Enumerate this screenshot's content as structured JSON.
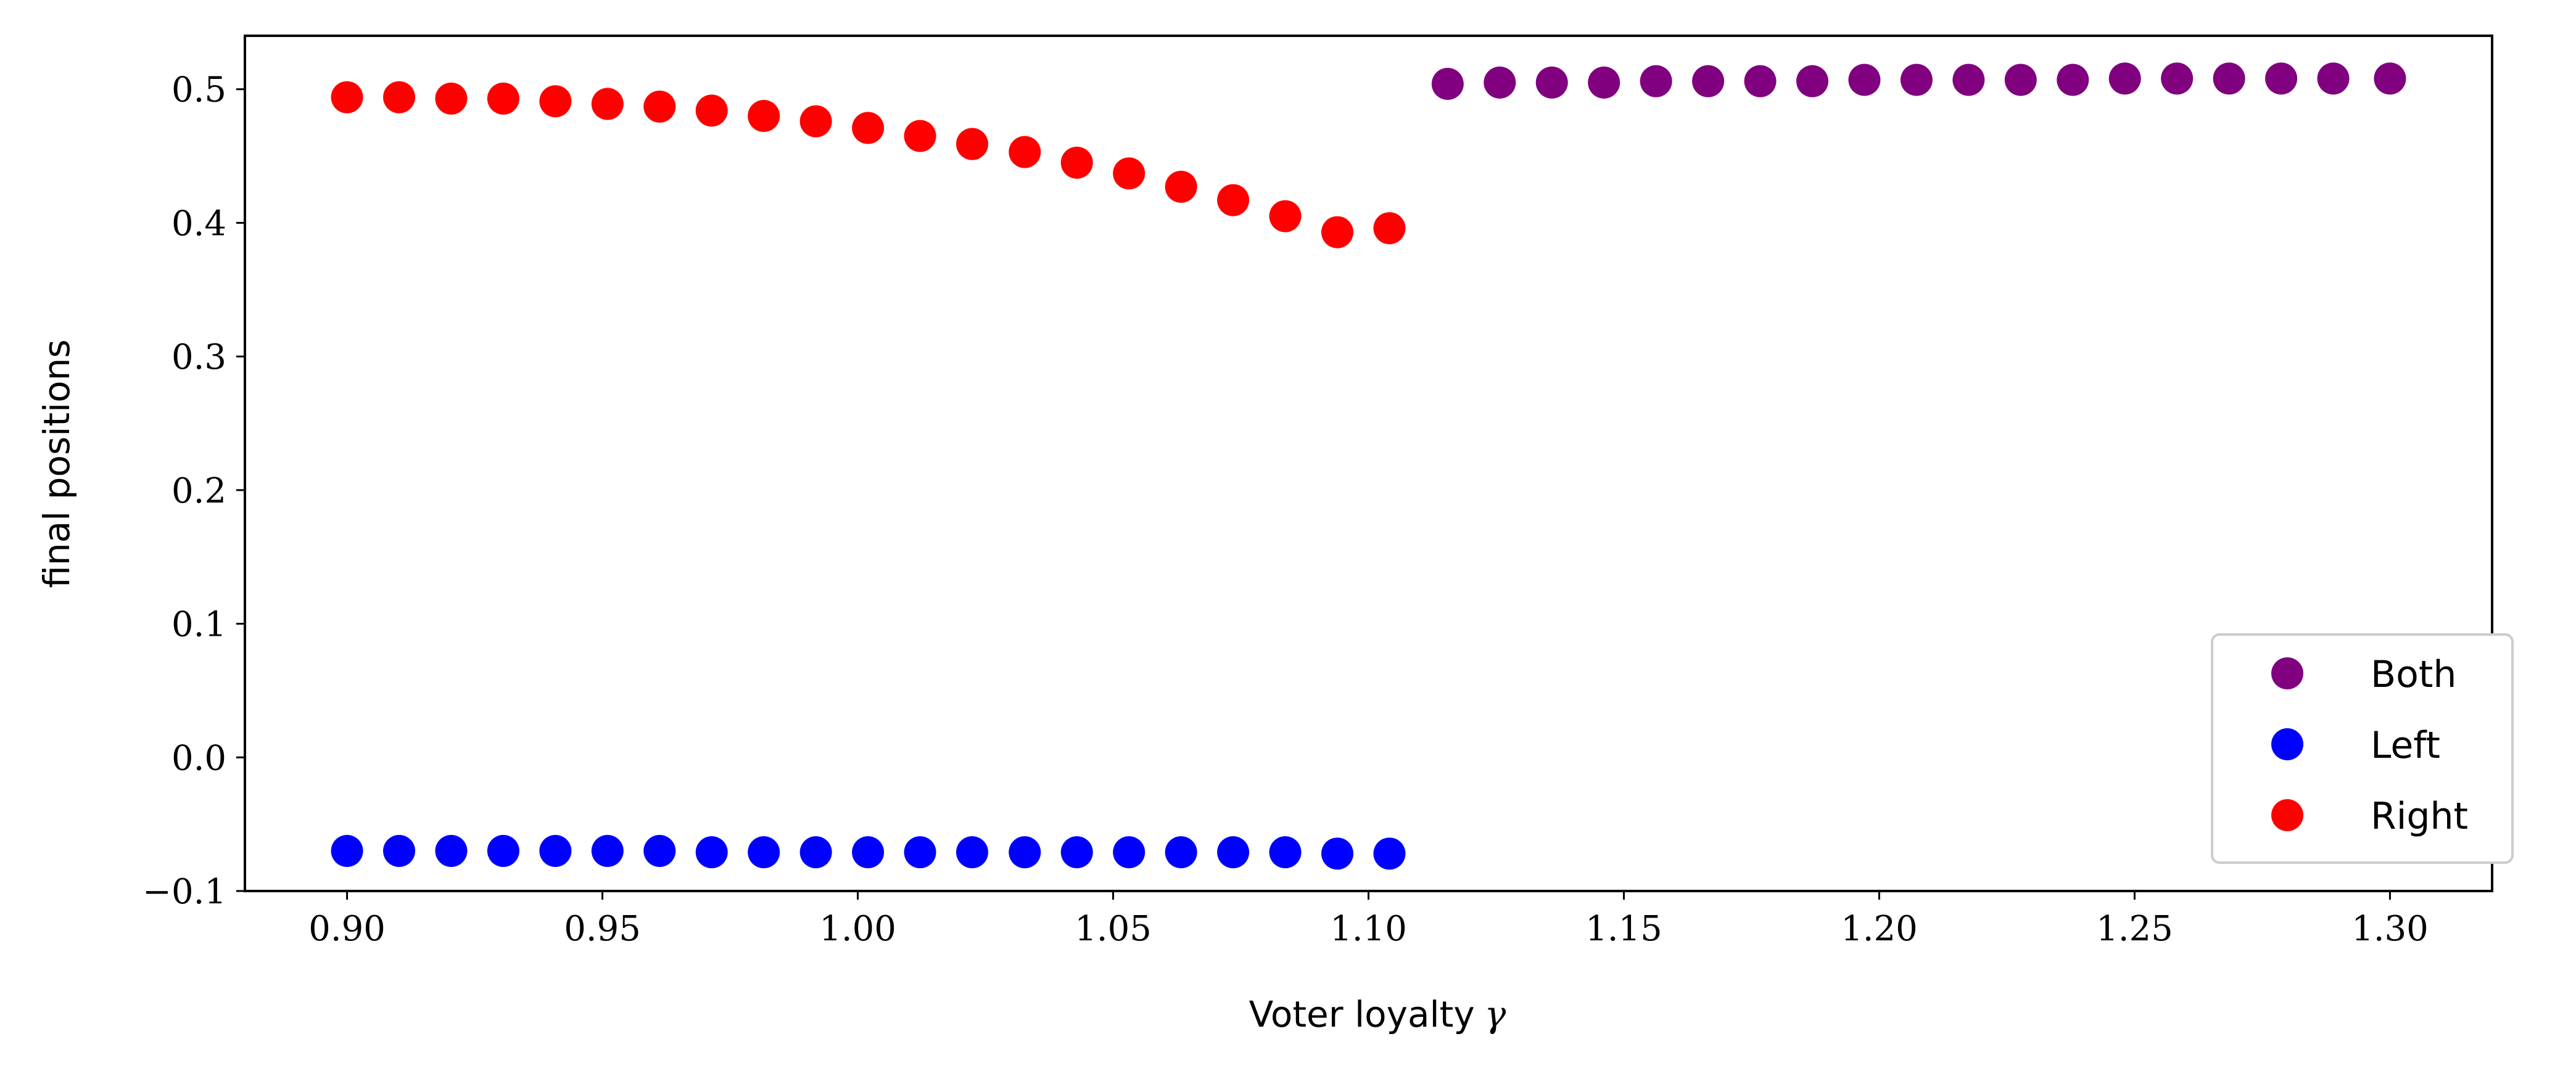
{
  "chart_data": {
    "type": "scatter",
    "title": "",
    "xlabel": "Voter loyalty",
    "xlabel_symbol": "γ",
    "ylabel": "final positions",
    "xlim": [
      0.88,
      1.32
    ],
    "ylim": [
      -0.1,
      0.54
    ],
    "x_ticks": [
      0.9,
      0.95,
      1.0,
      1.05,
      1.1,
      1.15,
      1.2,
      1.25,
      1.3
    ],
    "x_tick_labels": [
      "0.90",
      "0.95",
      "1.00",
      "1.05",
      "1.10",
      "1.15",
      "1.20",
      "1.25",
      "1.30"
    ],
    "y_ticks": [
      -0.1,
      0.0,
      0.1,
      0.2,
      0.3,
      0.4,
      0.5
    ],
    "y_tick_labels": [
      "−0.1",
      "0.0",
      "0.1",
      "0.2",
      "0.3",
      "0.4",
      "0.5"
    ],
    "grid": false,
    "legend_position": "lower-right",
    "series": [
      {
        "name": "Both",
        "color": "#800080",
        "x": [
          1.1155,
          1.1257,
          1.1359,
          1.1461,
          1.1563,
          1.1665,
          1.1767,
          1.1869,
          1.1971,
          1.2073,
          1.2175,
          1.2277,
          1.2379,
          1.2481,
          1.2583,
          1.2685,
          1.2787,
          1.2889,
          1.3
        ],
        "values": [
          0.504,
          0.505,
          0.505,
          0.505,
          0.506,
          0.506,
          0.506,
          0.506,
          0.507,
          0.507,
          0.507,
          0.507,
          0.507,
          0.508,
          0.508,
          0.508,
          0.508,
          0.508,
          0.508
        ]
      },
      {
        "name": "Left",
        "color": "#0000ff",
        "x": [
          0.9,
          0.9102,
          0.9204,
          0.9306,
          0.9408,
          0.951,
          0.9612,
          0.9714,
          0.9816,
          0.9918,
          1.002,
          1.0122,
          1.0224,
          1.0327,
          1.0429,
          1.0531,
          1.0633,
          1.0735,
          1.0837,
          1.0939,
          1.1041
        ],
        "values": [
          -0.07,
          -0.07,
          -0.07,
          -0.07,
          -0.07,
          -0.07,
          -0.07,
          -0.071,
          -0.071,
          -0.071,
          -0.071,
          -0.071,
          -0.071,
          -0.071,
          -0.071,
          -0.071,
          -0.071,
          -0.071,
          -0.071,
          -0.072,
          -0.072
        ]
      },
      {
        "name": "Right",
        "color": "#ff0000",
        "x": [
          0.9,
          0.9102,
          0.9204,
          0.9306,
          0.9408,
          0.951,
          0.9612,
          0.9714,
          0.9816,
          0.9918,
          1.002,
          1.0122,
          1.0224,
          1.0327,
          1.0429,
          1.0531,
          1.0633,
          1.0735,
          1.0837,
          1.0939,
          1.1041
        ],
        "values": [
          0.494,
          0.494,
          0.493,
          0.493,
          0.491,
          0.489,
          0.487,
          0.484,
          0.48,
          0.476,
          0.471,
          0.465,
          0.459,
          0.453,
          0.445,
          0.437,
          0.427,
          0.417,
          0.405,
          0.393,
          0.396
        ]
      }
    ]
  }
}
